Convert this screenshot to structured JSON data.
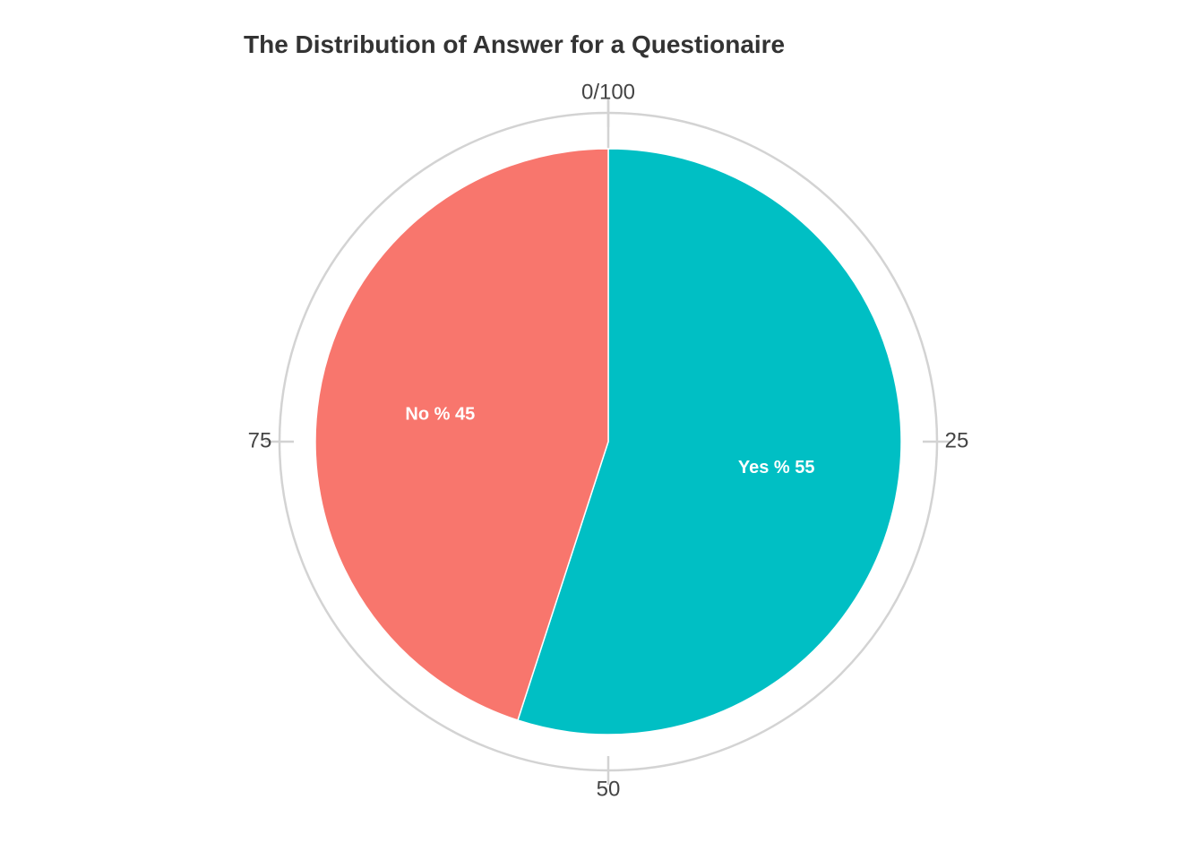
{
  "chart_data": {
    "type": "pie",
    "title": "The Distribution of Answer for a Questionaire",
    "slices": [
      {
        "name": "Yes",
        "value": 55,
        "color": "#00BFC4",
        "label": "Yes % 55"
      },
      {
        "name": "No",
        "value": 45,
        "color": "#F8766D",
        "label": "No % 45"
      }
    ],
    "axis": {
      "ticks": [
        {
          "value": 0,
          "label": "0/100"
        },
        {
          "value": 25,
          "label": "25"
        },
        {
          "value": 50,
          "label": "50"
        },
        {
          "value": 75,
          "label": "75"
        }
      ],
      "range": [
        0,
        100
      ]
    },
    "grid": true,
    "grid_color": "#d3d3d3",
    "background_color": "#ffffff"
  }
}
